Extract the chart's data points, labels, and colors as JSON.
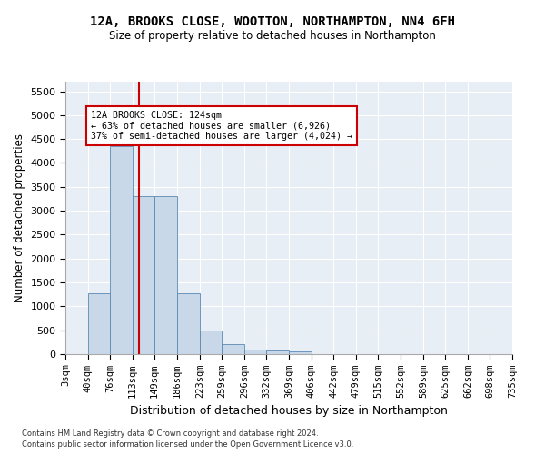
{
  "title1": "12A, BROOKS CLOSE, WOOTTON, NORTHAMPTON, NN4 6FH",
  "title2": "Size of property relative to detached houses in Northampton",
  "xlabel": "Distribution of detached houses by size in Northampton",
  "ylabel": "Number of detached properties",
  "footnote1": "Contains HM Land Registry data © Crown copyright and database right 2024.",
  "footnote2": "Contains public sector information licensed under the Open Government Licence v3.0.",
  "bar_edges": [
    3,
    40,
    76,
    113,
    149,
    186,
    223,
    259,
    296,
    332,
    369,
    406,
    442,
    479,
    515,
    552,
    589,
    625,
    662,
    698,
    735
  ],
  "bar_labels": [
    "3sqm",
    "40sqm",
    "76sqm",
    "113sqm",
    "149sqm",
    "186sqm",
    "223sqm",
    "259sqm",
    "296sqm",
    "332sqm",
    "369sqm",
    "406sqm",
    "442sqm",
    "479sqm",
    "515sqm",
    "552sqm",
    "589sqm",
    "625sqm",
    "662sqm",
    "698sqm",
    "735sqm"
  ],
  "bar_values": [
    0,
    1270,
    4350,
    3300,
    3300,
    1280,
    490,
    215,
    100,
    75,
    60,
    0,
    0,
    0,
    0,
    0,
    0,
    0,
    0,
    0
  ],
  "bar_color": "#c8d8e8",
  "bar_edgecolor": "#5a8ab5",
  "vline_x": 124,
  "vline_color": "#cc0000",
  "annotation_text": "12A BROOKS CLOSE: 124sqm\n← 63% of detached houses are smaller (6,926)\n37% of semi-detached houses are larger (4,024) →",
  "annotation_box_color": "white",
  "annotation_box_edgecolor": "#cc0000",
  "ylim_max": 5700,
  "yticks": [
    0,
    500,
    1000,
    1500,
    2000,
    2500,
    3000,
    3500,
    4000,
    4500,
    5000,
    5500
  ],
  "bg_color": "#e8eef5",
  "grid_color": "white"
}
